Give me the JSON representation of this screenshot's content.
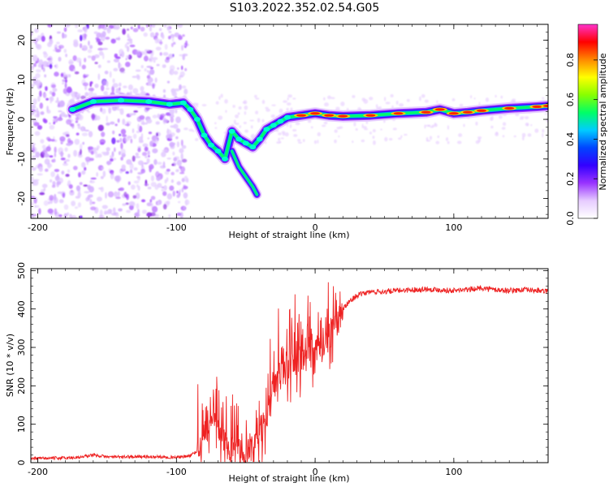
{
  "chart_data": [
    {
      "type": "heatmap",
      "title": "S103.2022.352.02.54.G05",
      "xlabel": "Height of straight line (km)",
      "ylabel": "Frequency (Hz)",
      "xlim": [
        -205,
        168
      ],
      "ylim": [
        -25,
        24
      ],
      "x_ticks": [
        -200,
        -100,
        0,
        100
      ],
      "y_ticks": [
        20,
        10,
        0,
        -10,
        -20
      ],
      "colorbar": {
        "label": "Normalized spectral amplitude",
        "range": [
          0.0,
          0.98
        ],
        "ticks": [
          "0.0",
          "0.2",
          "0.4",
          "0.6",
          "0.8"
        ],
        "colormap": [
          "#ffffff",
          "#e6ccff",
          "#9933ff",
          "#3300ff",
          "#0044ff",
          "#00ccff",
          "#00ff66",
          "#88ff00",
          "#ffff00",
          "#ff8800",
          "#ff0000",
          "#ff33cc"
        ]
      },
      "dominant_frequency_track": {
        "x": [
          -175,
          -160,
          -140,
          -120,
          -105,
          -95,
          -90,
          -85,
          -80,
          -75,
          -70,
          -65,
          -60,
          -55,
          -50,
          -45,
          -40,
          -35,
          -30,
          -25,
          -20,
          -10,
          0,
          10,
          20,
          40,
          60,
          80,
          90,
          100,
          110,
          120,
          140,
          160,
          168
        ],
        "y": [
          2.5,
          4.5,
          4.8,
          4.5,
          3.8,
          4.2,
          2.5,
          0,
          -4,
          -6.5,
          -8,
          -10,
          -3,
          -5,
          -6,
          -7,
          -5,
          -2.5,
          -1.5,
          -0.5,
          0.5,
          1.0,
          1.5,
          1.0,
          0.8,
          1.0,
          1.5,
          1.8,
          2.5,
          1.5,
          1.8,
          2.2,
          2.8,
          3.2,
          3.4
        ]
      },
      "secondary_branch": {
        "x": [
          -60,
          -55,
          -50,
          -45,
          -42
        ],
        "y": [
          -8,
          -12,
          -14.5,
          -17,
          -19
        ]
      }
    },
    {
      "type": "line",
      "xlabel": "Height of straight line (km)",
      "ylabel": "SNR (10 * v/v)",
      "xlim": [
        -205,
        168
      ],
      "ylim": [
        0,
        505
      ],
      "x_ticks": [
        -200,
        -100,
        0,
        100
      ],
      "y_ticks": [
        0,
        100,
        200,
        300,
        400,
        500
      ],
      "color": "#ee2222",
      "series": [
        {
          "x": [
            -205,
            -190,
            -180,
            -170,
            -160,
            -150,
            -140,
            -130,
            -120,
            -110,
            -100,
            -95,
            -90,
            -85,
            -80,
            -75,
            -70,
            -65,
            -60,
            -55,
            -50,
            -45,
            -40,
            -35,
            -30,
            -25,
            -20,
            -15,
            -10,
            -5,
            0,
            5,
            10,
            15,
            20,
            25,
            30,
            35,
            40,
            50,
            60,
            70,
            80,
            90,
            100,
            110,
            120,
            130,
            140,
            150,
            160,
            168
          ],
          "y": [
            10,
            12,
            12,
            14,
            20,
            15,
            15,
            16,
            15,
            15,
            14,
            15,
            18,
            30,
            70,
            110,
            90,
            50,
            35,
            30,
            25,
            30,
            60,
            120,
            200,
            240,
            250,
            260,
            270,
            275,
            290,
            300,
            320,
            360,
            400,
            420,
            435,
            440,
            445,
            445,
            448,
            450,
            452,
            450,
            448,
            450,
            455,
            450,
            448,
            450,
            448,
            445
          ]
        }
      ]
    }
  ]
}
